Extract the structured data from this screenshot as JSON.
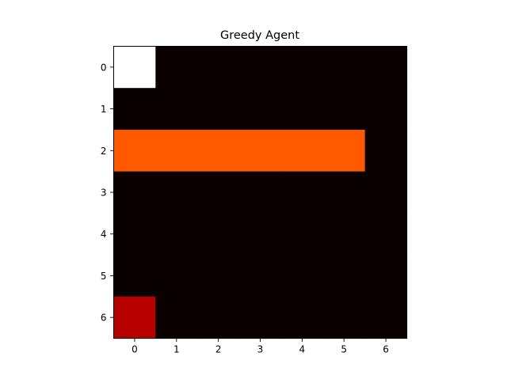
{
  "chart_data": {
    "type": "heatmap",
    "title": "Greedy Agent",
    "xlabel": "",
    "ylabel": "",
    "x_ticks": [
      "0",
      "1",
      "2",
      "3",
      "4",
      "5",
      "6"
    ],
    "y_ticks": [
      "0",
      "1",
      "2",
      "3",
      "4",
      "5",
      "6"
    ],
    "xlim": [
      -0.5,
      6.5
    ],
    "ylim": [
      6.5,
      -0.5
    ],
    "grid": false,
    "colormap": "hot",
    "grid_values": [
      [
        1.0,
        0.0,
        0.0,
        0.0,
        0.0,
        0.0,
        0.0
      ],
      [
        0.0,
        0.0,
        0.0,
        0.0,
        0.0,
        0.0,
        0.0
      ],
      [
        0.5,
        0.5,
        0.5,
        0.5,
        0.5,
        0.5,
        0.0
      ],
      [
        0.0,
        0.0,
        0.0,
        0.0,
        0.0,
        0.0,
        0.0
      ],
      [
        0.0,
        0.0,
        0.0,
        0.0,
        0.0,
        0.0,
        0.0
      ],
      [
        0.0,
        0.0,
        0.0,
        0.0,
        0.0,
        0.0,
        0.0
      ],
      [
        0.25,
        0.0,
        0.0,
        0.0,
        0.0,
        0.0,
        0.0
      ]
    ],
    "colors": {
      "background": "#0a0000",
      "white": "#ffffff",
      "red": "#ff1400",
      "dark_red": "#8b0000"
    }
  }
}
